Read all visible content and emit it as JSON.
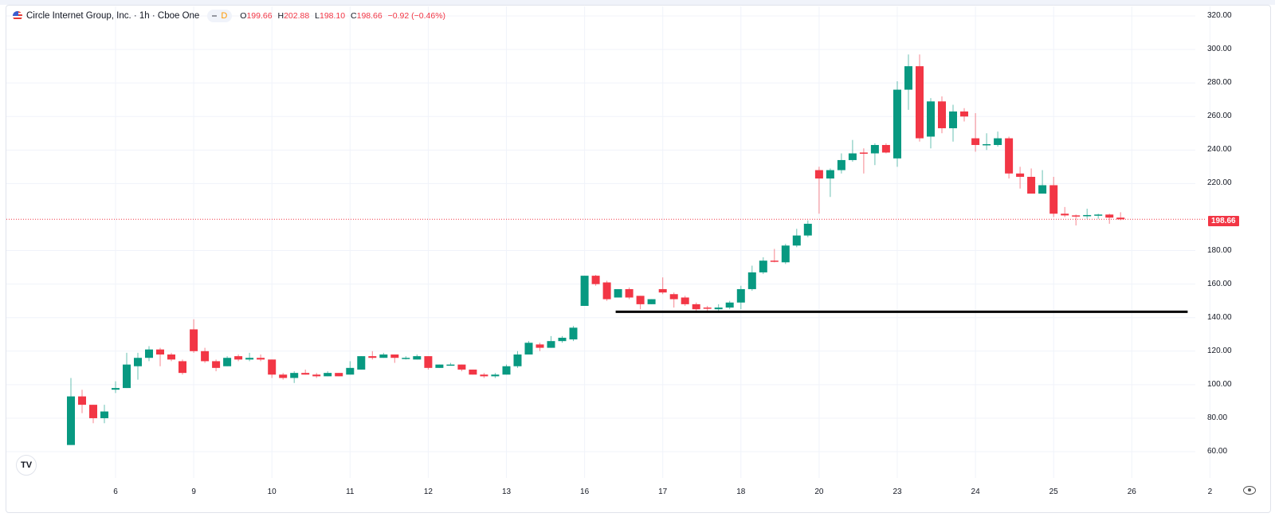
{
  "header": {
    "title": "Circle Internet Group, Inc. · 1h · Cboe One",
    "badge_label": "D",
    "ohlc": {
      "o_label": "O",
      "o": "199.66",
      "h_label": "H",
      "h": "202.88",
      "l_label": "L",
      "l": "198.10",
      "c_label": "C",
      "c": "198.66",
      "change": "−0.92 (−0.46%)"
    }
  },
  "logo_text": "TV",
  "chart_data": {
    "type": "candlestick",
    "title": "Circle Internet Group, Inc. · 1h · Cboe One",
    "ylim": [
      55,
      320
    ],
    "yticks": [
      "320.00",
      "300.00",
      "280.00",
      "260.00",
      "240.00",
      "220.00",
      "180.00",
      "160.00",
      "140.00",
      "120.00",
      "100.00",
      "80.00",
      "60.00"
    ],
    "ytick_values": [
      320,
      300,
      280,
      260,
      240,
      220,
      180,
      160,
      140,
      120,
      100,
      80,
      60
    ],
    "grid": true,
    "colors": {
      "up": "#089981",
      "down": "#f23645",
      "grid": "#f0f3fa",
      "last_price": "#f23645",
      "trendline": "#000000"
    },
    "last_price": {
      "value": 198.66,
      "label": "198.66"
    },
    "trendline": {
      "price": 143.5,
      "from_day": "16",
      "from_candle": 3,
      "to_day": "2",
      "to_candle": -2
    },
    "days": [
      {
        "label": "",
        "candles": [
          [
            64,
            104,
            64,
            93
          ],
          [
            93,
            97,
            83,
            88
          ],
          [
            88,
            88,
            77,
            80
          ],
          [
            80,
            88,
            77,
            84
          ]
        ]
      },
      {
        "label": "6",
        "candles": [
          [
            97,
            102,
            95,
            98
          ],
          [
            98,
            119,
            98,
            112
          ],
          [
            111,
            119,
            103,
            116
          ],
          [
            116,
            123,
            114,
            121
          ],
          [
            121,
            122,
            111,
            118
          ],
          [
            118,
            119,
            114,
            115
          ],
          [
            114,
            115,
            106,
            107
          ]
        ]
      },
      {
        "label": "9",
        "candles": [
          [
            133,
            139,
            119,
            120
          ],
          [
            120,
            122,
            113,
            114
          ],
          [
            114,
            115,
            108,
            110
          ],
          [
            111,
            117,
            111,
            116
          ],
          [
            117,
            118,
            114,
            115
          ],
          [
            115,
            119,
            114,
            116
          ],
          [
            116,
            118,
            114,
            115
          ]
        ]
      },
      {
        "label": "10",
        "candles": [
          [
            115,
            115,
            104,
            106
          ],
          [
            106,
            107,
            103,
            104
          ],
          [
            104,
            108,
            101,
            107
          ],
          [
            107,
            109,
            106,
            106
          ],
          [
            106,
            107,
            104,
            105
          ],
          [
            105,
            108,
            105,
            107
          ],
          [
            107,
            107,
            105,
            105
          ]
        ]
      },
      {
        "label": "11",
        "candles": [
          [
            106,
            114,
            106,
            110
          ],
          [
            109,
            117,
            109,
            117
          ],
          [
            117,
            120,
            115,
            116
          ],
          [
            116,
            119,
            116,
            118
          ],
          [
            118,
            118,
            113,
            116
          ],
          [
            116,
            117,
            115,
            116
          ],
          [
            115,
            118,
            115,
            117
          ]
        ]
      },
      {
        "label": "12",
        "candles": [
          [
            117,
            117,
            109,
            110
          ],
          [
            110,
            112,
            110,
            112
          ],
          [
            112,
            113,
            112,
            112
          ],
          [
            112,
            112,
            108,
            109
          ],
          [
            109,
            109,
            106,
            106
          ],
          [
            106,
            107,
            104,
            105
          ],
          [
            105,
            107,
            104,
            106
          ]
        ]
      },
      {
        "label": "13",
        "candles": [
          [
            106,
            112,
            106,
            111
          ],
          [
            111,
            120,
            110,
            118
          ],
          [
            118,
            126,
            118,
            125
          ],
          [
            124,
            125,
            120,
            122
          ],
          [
            122,
            129,
            122,
            126
          ],
          [
            126,
            129,
            125,
            128
          ],
          [
            127,
            135,
            126,
            134
          ]
        ]
      },
      {
        "label": "16",
        "candles": [
          [
            147,
            165,
            147,
            165
          ],
          [
            165,
            165.5,
            159,
            160
          ],
          [
            161,
            162,
            150,
            151
          ],
          [
            152,
            157,
            152,
            157
          ],
          [
            157,
            158,
            151,
            152
          ],
          [
            153,
            153,
            145,
            148
          ],
          [
            148,
            151,
            148,
            151
          ]
        ]
      },
      {
        "label": "17",
        "candles": [
          [
            157,
            164,
            154,
            155
          ],
          [
            154,
            155,
            146,
            151
          ],
          [
            152,
            153,
            147,
            148
          ],
          [
            148,
            149,
            144,
            145
          ],
          [
            146,
            147,
            144,
            145.6
          ],
          [
            145,
            148,
            143,
            146
          ],
          [
            146,
            150,
            145,
            149
          ]
        ]
      },
      {
        "label": "18",
        "candles": [
          [
            149,
            159,
            145,
            157
          ],
          [
            157,
            171,
            156,
            167
          ],
          [
            167,
            176,
            166,
            174
          ],
          [
            174,
            181,
            173,
            173.4
          ],
          [
            173,
            184,
            172,
            183
          ],
          [
            183,
            193,
            182,
            189
          ],
          [
            189,
            198,
            188,
            196
          ]
        ]
      },
      {
        "label": "20",
        "candles": [
          [
            228,
            230,
            202,
            223
          ],
          [
            223,
            229,
            212,
            228
          ],
          [
            228,
            238,
            226,
            234
          ],
          [
            234,
            246,
            233,
            238
          ],
          [
            238.5,
            241,
            226,
            238
          ],
          [
            238,
            244,
            231,
            243
          ],
          [
            243,
            244,
            238,
            238.5
          ]
        ]
      },
      {
        "label": "23",
        "candles": [
          [
            235,
            281,
            230,
            276
          ],
          [
            276,
            297,
            264,
            290
          ],
          [
            290,
            297,
            245,
            247
          ],
          [
            248,
            271,
            241,
            269
          ],
          [
            269,
            272,
            250,
            253
          ],
          [
            253,
            267,
            245,
            263
          ],
          [
            263,
            265,
            257,
            260
          ]
        ]
      },
      {
        "label": "24",
        "candles": [
          [
            247,
            262,
            239,
            243
          ],
          [
            243,
            250,
            240,
            243.5
          ],
          [
            243,
            251,
            242,
            247
          ],
          [
            247,
            248,
            223,
            226
          ],
          [
            226,
            230,
            217,
            224
          ],
          [
            224,
            229,
            214,
            214
          ],
          [
            214,
            228,
            214,
            219
          ]
        ]
      },
      {
        "label": "25",
        "candles": [
          [
            219,
            224,
            200,
            202
          ],
          [
            202,
            206,
            200,
            201
          ],
          [
            201,
            201.5,
            195,
            200.6
          ],
          [
            200.8,
            205,
            199,
            201.2
          ],
          [
            201,
            202,
            199,
            201.5
          ],
          [
            201.5,
            202,
            196,
            199.66
          ],
          [
            199.66,
            202.88,
            198.1,
            198.66
          ]
        ]
      },
      {
        "label": "26",
        "candles": []
      },
      {
        "label": "2",
        "candles": []
      }
    ]
  }
}
